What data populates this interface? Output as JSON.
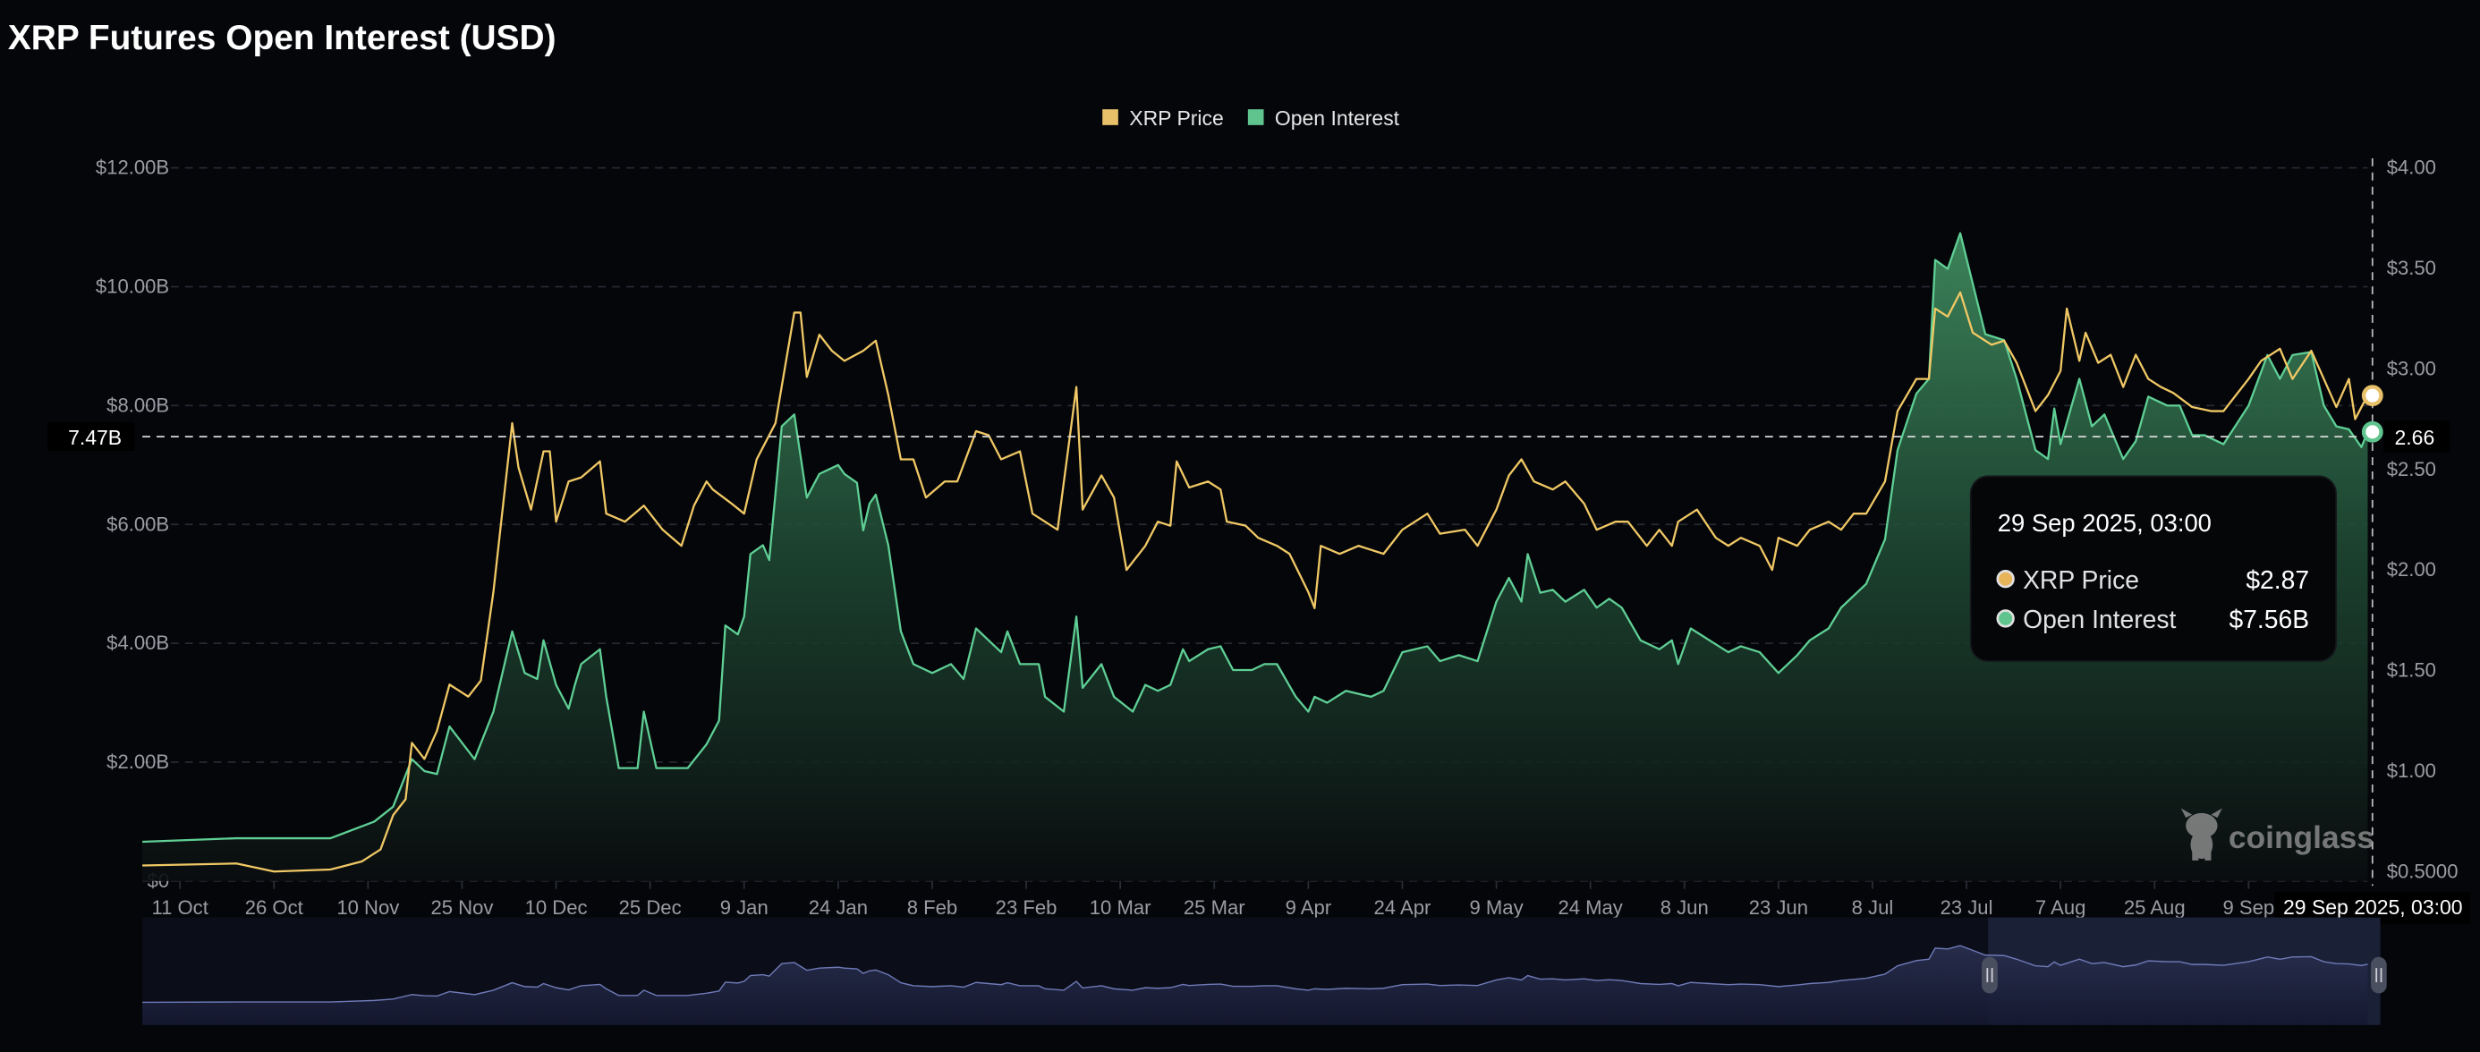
{
  "chart_data": {
    "type": "line",
    "title": "XRP Futures Open Interest (USD)",
    "x_unit": "days since 5 Oct 2024",
    "x_ticks": [
      "11 Oct",
      "26 Oct",
      "10 Nov",
      "25 Nov",
      "10 Dec",
      "25 Dec",
      "9 Jan",
      "24 Jan",
      "8 Feb",
      "23 Feb",
      "10 Mar",
      "25 Mar",
      "9 Apr",
      "24 Apr",
      "9 May",
      "24 May",
      "8 Jun",
      "23 Jun",
      "8 Jul",
      "23 Jul",
      "7 Aug",
      "25 Aug",
      "9 Sep"
    ],
    "x_tick_days": [
      6,
      21,
      36,
      51,
      66,
      81,
      96,
      111,
      126,
      141,
      156,
      171,
      186,
      201,
      216,
      231,
      246,
      261,
      276,
      291,
      306,
      321,
      336
    ],
    "xlim": [
      0,
      355
    ],
    "left_axis": {
      "label": "Open Interest",
      "ticks": [
        "$0",
        "$2.00B",
        "$4.00B",
        "$6.00B",
        "$8.00B",
        "$10.00B",
        "$12.00B"
      ],
      "tick_values": [
        0,
        2,
        4,
        6,
        8,
        10,
        12
      ],
      "ylim": [
        0,
        12
      ],
      "unit": "B USD"
    },
    "right_axis": {
      "label": "XRP Price",
      "ticks": [
        "$0.5000",
        "$1.00",
        "$1.50",
        "$2.00",
        "$2.50",
        "$3.00",
        "$3.50",
        "$4.00"
      ],
      "tick_values": [
        0.5,
        1,
        1.5,
        2,
        2.5,
        3,
        3.5,
        4
      ],
      "ylim": [
        0.5,
        4
      ]
    },
    "grid": true,
    "legend_position": "top-center",
    "legend": [
      {
        "name": "XRP Price",
        "color": "#e8c06a"
      },
      {
        "name": "Open Interest",
        "color": "#5fc48e"
      }
    ],
    "series": [
      {
        "name": "Open Interest",
        "axis": "left",
        "type": "area",
        "color": "#5fcf95",
        "x": [
          0,
          15,
          30,
          37,
          40,
          43,
          45,
          47,
          49,
          53,
          56,
          59,
          61,
          63,
          64,
          66,
          68,
          69,
          70,
          73,
          74,
          76,
          79,
          80,
          82,
          85,
          87,
          90,
          92,
          93,
          95,
          96,
          97,
          99,
          100,
          102,
          104,
          106,
          108,
          111,
          112,
          114,
          115,
          116,
          117,
          119,
          121,
          123,
          126,
          129,
          131,
          133,
          135,
          137,
          138,
          140,
          143,
          144,
          147,
          149,
          150,
          153,
          155,
          158,
          160,
          162,
          164,
          166,
          167,
          170,
          172,
          174,
          177,
          179,
          181,
          184,
          186,
          187,
          189,
          192,
          196,
          198,
          201,
          205,
          207,
          210,
          213,
          216,
          218,
          220,
          221,
          223,
          225,
          227,
          230,
          232,
          234,
          236,
          239,
          242,
          244,
          245,
          247,
          250,
          253,
          255,
          258,
          261,
          264,
          266,
          269,
          271,
          275,
          278,
          280,
          283,
          285,
          286,
          288,
          290,
          292,
          294,
          297,
          299,
          302,
          304,
          305,
          306,
          309,
          311,
          313,
          316,
          318,
          320,
          323,
          325,
          327,
          329,
          332,
          336,
          339,
          341,
          343,
          346,
          348,
          350,
          352,
          354,
          355
        ],
        "y": [
          0.66,
          0.72,
          0.72,
          1.0,
          1.25,
          2.05,
          1.85,
          1.8,
          2.6,
          2.05,
          2.85,
          4.2,
          3.5,
          3.4,
          4.05,
          3.3,
          2.9,
          3.3,
          3.65,
          3.9,
          3.1,
          1.9,
          1.9,
          2.85,
          1.9,
          1.9,
          1.9,
          2.3,
          2.7,
          4.3,
          4.15,
          4.45,
          5.5,
          5.65,
          5.4,
          7.65,
          7.85,
          6.45,
          6.85,
          7.0,
          6.85,
          6.7,
          5.9,
          6.35,
          6.5,
          5.65,
          4.2,
          3.65,
          3.5,
          3.65,
          3.4,
          4.25,
          4.05,
          3.85,
          4.2,
          3.65,
          3.65,
          3.1,
          2.85,
          4.45,
          3.25,
          3.65,
          3.1,
          2.85,
          3.3,
          3.2,
          3.3,
          3.9,
          3.7,
          3.9,
          3.95,
          3.55,
          3.55,
          3.65,
          3.65,
          3.1,
          2.85,
          3.1,
          3.0,
          3.2,
          3.1,
          3.2,
          3.85,
          3.95,
          3.7,
          3.8,
          3.7,
          4.7,
          5.1,
          4.7,
          5.5,
          4.85,
          4.9,
          4.7,
          4.9,
          4.6,
          4.75,
          4.6,
          4.05,
          3.9,
          4.05,
          3.65,
          4.25,
          4.05,
          3.85,
          3.95,
          3.85,
          3.5,
          3.8,
          4.05,
          4.25,
          4.6,
          5.0,
          5.75,
          7.25,
          8.2,
          8.45,
          10.45,
          10.3,
          10.9,
          10.05,
          9.2,
          9.1,
          8.45,
          7.25,
          7.1,
          7.95,
          7.35,
          8.45,
          7.65,
          7.85,
          7.1,
          7.4,
          8.15,
          8.0,
          8.0,
          7.5,
          7.5,
          7.35,
          8.0,
          8.85,
          8.45,
          8.85,
          8.9,
          8.0,
          7.65,
          7.6,
          7.3,
          7.56
        ]
      },
      {
        "name": "XRP Price",
        "axis": "right",
        "type": "line",
        "color": "#f0c865",
        "x": [
          0,
          15,
          21,
          30,
          35,
          38,
          40,
          42,
          43,
          45,
          47,
          49,
          52,
          54,
          56,
          59,
          60,
          62,
          64,
          65,
          66,
          68,
          70,
          73,
          74,
          77,
          80,
          83,
          86,
          88,
          90,
          91,
          94,
          96,
          98,
          101,
          104,
          105,
          106,
          108,
          110,
          112,
          115,
          117,
          119,
          121,
          123,
          125,
          128,
          130,
          133,
          135,
          137,
          140,
          142,
          144,
          146,
          149,
          150,
          153,
          155,
          157,
          160,
          162,
          164,
          165,
          167,
          170,
          172,
          173,
          176,
          178,
          181,
          183,
          186,
          187,
          188,
          191,
          194,
          198,
          201,
          205,
          207,
          211,
          213,
          216,
          218,
          220,
          222,
          225,
          227,
          230,
          232,
          235,
          237,
          240,
          242,
          244,
          245,
          248,
          251,
          253,
          255,
          258,
          260,
          261,
          264,
          266,
          269,
          271,
          273,
          275,
          278,
          280,
          283,
          285,
          286,
          288,
          290,
          292,
          295,
          297,
          299,
          302,
          304,
          306,
          307,
          309,
          310,
          312,
          314,
          316,
          318,
          320,
          322,
          324,
          327,
          330,
          332,
          336,
          338,
          341,
          343,
          346,
          348,
          350,
          352,
          353,
          355
        ],
        "y": [
          0.53,
          0.54,
          0.5,
          0.51,
          0.55,
          0.61,
          0.78,
          0.86,
          1.14,
          1.06,
          1.2,
          1.43,
          1.37,
          1.45,
          1.89,
          2.73,
          2.51,
          2.3,
          2.59,
          2.59,
          2.24,
          2.44,
          2.46,
          2.54,
          2.28,
          2.24,
          2.32,
          2.2,
          2.12,
          2.32,
          2.44,
          2.4,
          2.33,
          2.28,
          2.55,
          2.73,
          3.28,
          3.28,
          2.96,
          3.17,
          3.09,
          3.04,
          3.09,
          3.14,
          2.87,
          2.55,
          2.55,
          2.36,
          2.44,
          2.44,
          2.69,
          2.67,
          2.55,
          2.59,
          2.28,
          2.24,
          2.2,
          2.91,
          2.3,
          2.47,
          2.36,
          2.0,
          2.12,
          2.24,
          2.22,
          2.54,
          2.41,
          2.44,
          2.4,
          2.24,
          2.22,
          2.16,
          2.12,
          2.08,
          1.89,
          1.81,
          2.12,
          2.08,
          2.12,
          2.08,
          2.2,
          2.28,
          2.18,
          2.2,
          2.12,
          2.3,
          2.47,
          2.55,
          2.44,
          2.4,
          2.44,
          2.33,
          2.2,
          2.24,
          2.24,
          2.12,
          2.2,
          2.12,
          2.24,
          2.3,
          2.16,
          2.12,
          2.16,
          2.12,
          2.0,
          2.16,
          2.12,
          2.2,
          2.24,
          2.2,
          2.28,
          2.28,
          2.44,
          2.79,
          2.95,
          2.95,
          3.3,
          3.26,
          3.38,
          3.18,
          3.12,
          3.14,
          3.03,
          2.79,
          2.87,
          2.99,
          3.3,
          3.04,
          3.18,
          3.03,
          3.07,
          2.91,
          3.07,
          2.95,
          2.91,
          2.88,
          2.81,
          2.79,
          2.79,
          2.95,
          3.04,
          3.1,
          2.95,
          3.09,
          2.95,
          2.81,
          2.95,
          2.75,
          2.87
        ]
      }
    ],
    "crosshair": {
      "date_label": "29 Sep 2025, 03:00",
      "left_value_label": "7.47B",
      "right_value_label": "2.66"
    },
    "tooltip": {
      "title": "29 Sep 2025, 03:00",
      "rows": [
        {
          "label": "XRP Price",
          "value": "$2.87",
          "color": "#e8b45a"
        },
        {
          "label": "Open Interest",
          "value": "$7.56B",
          "color": "#5fc48e"
        }
      ]
    },
    "watermark": "coinglass",
    "navigator": {
      "selected_range_days": [
        296,
        355
      ]
    }
  }
}
